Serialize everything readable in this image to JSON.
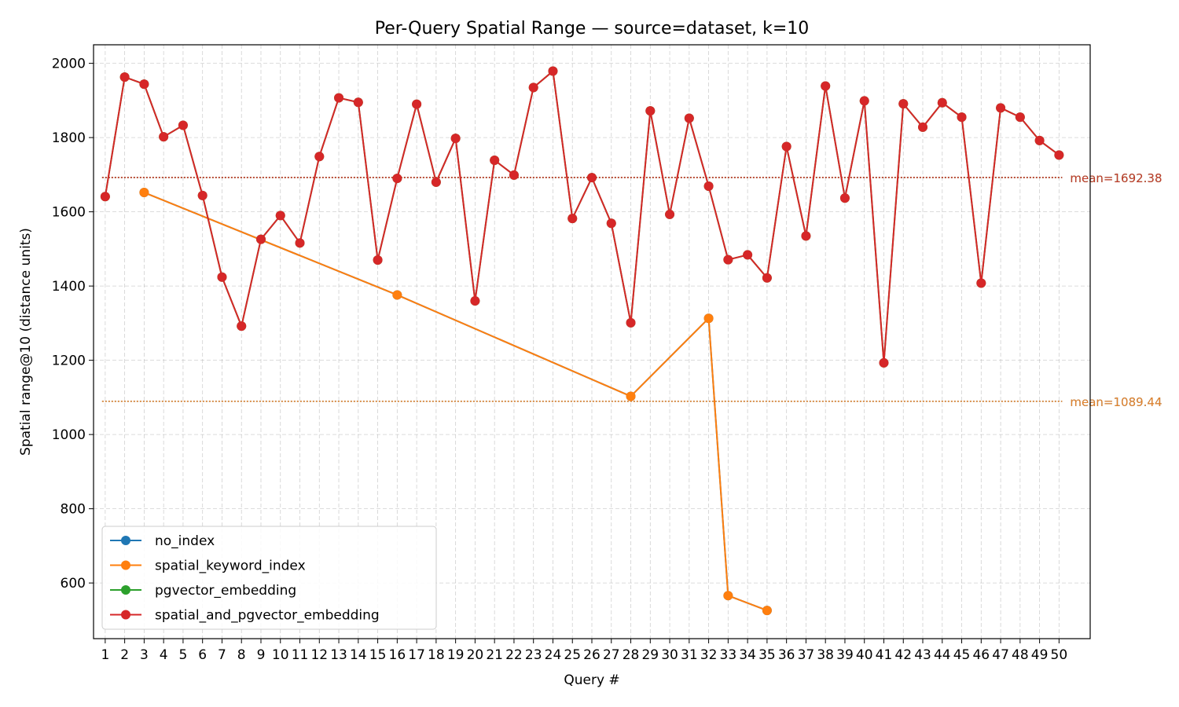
{
  "chart_data": {
    "type": "line",
    "title": "Per-Query Spatial Range — source=dataset, k=10",
    "xlabel": "Query #",
    "ylabel": "Spatial range@10 (distance units)",
    "x": [
      1,
      2,
      3,
      4,
      5,
      6,
      7,
      8,
      9,
      10,
      11,
      12,
      13,
      14,
      15,
      16,
      17,
      18,
      19,
      20,
      21,
      22,
      23,
      24,
      25,
      26,
      27,
      28,
      29,
      30,
      31,
      32,
      33,
      34,
      35,
      36,
      37,
      38,
      39,
      40,
      41,
      42,
      43,
      44,
      45,
      46,
      47,
      48,
      49,
      50
    ],
    "xlim": [
      0.4,
      51.6
    ],
    "ylim": [
      450,
      2050
    ],
    "yticks": [
      600,
      800,
      1000,
      1200,
      1400,
      1600,
      1800,
      2000
    ],
    "grid": true,
    "legend_position": "lower-left",
    "series": [
      {
        "name": "no_index",
        "color": "#1f77b4",
        "points": [
          [
            3,
            1652
          ],
          [
            16,
            1376
          ],
          [
            28,
            1103
          ],
          [
            32,
            1313
          ],
          [
            33,
            566
          ],
          [
            35,
            526
          ]
        ],
        "mean": 1089.44,
        "mean_label": "mean=1089.44"
      },
      {
        "name": "spatial_keyword_index",
        "color": "#ff7f0e",
        "points": [
          [
            3,
            1652
          ],
          [
            16,
            1376
          ],
          [
            28,
            1103
          ],
          [
            32,
            1313
          ],
          [
            33,
            566
          ],
          [
            35,
            526
          ]
        ],
        "mean": 1089.44,
        "mean_label": "mean=1089.44"
      },
      {
        "name": "pgvector_embedding",
        "color": "#2ca02c",
        "points": [
          [
            1,
            1641
          ],
          [
            2,
            1963
          ],
          [
            3,
            1944
          ],
          [
            4,
            1802
          ],
          [
            5,
            1833
          ],
          [
            6,
            1644
          ],
          [
            7,
            1424
          ],
          [
            8,
            1292
          ],
          [
            9,
            1526
          ],
          [
            10,
            1590
          ],
          [
            11,
            1516
          ],
          [
            12,
            1749
          ],
          [
            13,
            1907
          ],
          [
            14,
            1895
          ],
          [
            15,
            1470
          ],
          [
            16,
            1690
          ],
          [
            17,
            1890
          ],
          [
            18,
            1680
          ],
          [
            19,
            1798
          ],
          [
            20,
            1360
          ],
          [
            21,
            1739
          ],
          [
            22,
            1699
          ],
          [
            23,
            1935
          ],
          [
            24,
            1979
          ],
          [
            25,
            1582
          ],
          [
            26,
            1692
          ],
          [
            27,
            1569
          ],
          [
            28,
            1301
          ],
          [
            29,
            1872
          ],
          [
            30,
            1593
          ],
          [
            31,
            1852
          ],
          [
            32,
            1669
          ],
          [
            33,
            1471
          ],
          [
            34,
            1484
          ],
          [
            35,
            1422
          ],
          [
            36,
            1776
          ],
          [
            37,
            1535
          ],
          [
            38,
            1939
          ],
          [
            39,
            1637
          ],
          [
            40,
            1899
          ],
          [
            41,
            1193
          ],
          [
            42,
            1891
          ],
          [
            43,
            1828
          ],
          [
            44,
            1894
          ],
          [
            45,
            1855
          ],
          [
            46,
            1408
          ],
          [
            47,
            1880
          ],
          [
            48,
            1855
          ],
          [
            49,
            1792
          ],
          [
            50,
            1753
          ]
        ],
        "mean": 1692.38,
        "mean_label": "mean=1692.38"
      },
      {
        "name": "spatial_and_pgvector_embedding",
        "color": "#d62728",
        "points": [
          [
            1,
            1641
          ],
          [
            2,
            1963
          ],
          [
            3,
            1944
          ],
          [
            4,
            1802
          ],
          [
            5,
            1833
          ],
          [
            6,
            1644
          ],
          [
            7,
            1424
          ],
          [
            8,
            1292
          ],
          [
            9,
            1526
          ],
          [
            10,
            1590
          ],
          [
            11,
            1516
          ],
          [
            12,
            1749
          ],
          [
            13,
            1907
          ],
          [
            14,
            1895
          ],
          [
            15,
            1470
          ],
          [
            16,
            1690
          ],
          [
            17,
            1890
          ],
          [
            18,
            1680
          ],
          [
            19,
            1798
          ],
          [
            20,
            1360
          ],
          [
            21,
            1739
          ],
          [
            22,
            1699
          ],
          [
            23,
            1935
          ],
          [
            24,
            1979
          ],
          [
            25,
            1582
          ],
          [
            26,
            1692
          ],
          [
            27,
            1569
          ],
          [
            28,
            1301
          ],
          [
            29,
            1872
          ],
          [
            30,
            1593
          ],
          [
            31,
            1852
          ],
          [
            32,
            1669
          ],
          [
            33,
            1471
          ],
          [
            34,
            1484
          ],
          [
            35,
            1422
          ],
          [
            36,
            1776
          ],
          [
            37,
            1535
          ],
          [
            38,
            1939
          ],
          [
            39,
            1637
          ],
          [
            40,
            1899
          ],
          [
            41,
            1193
          ],
          [
            42,
            1891
          ],
          [
            43,
            1828
          ],
          [
            44,
            1894
          ],
          [
            45,
            1855
          ],
          [
            46,
            1408
          ],
          [
            47,
            1880
          ],
          [
            48,
            1855
          ],
          [
            49,
            1792
          ],
          [
            50,
            1753
          ]
        ],
        "mean": 1692.38,
        "mean_label": "mean=1692.38"
      }
    ]
  }
}
